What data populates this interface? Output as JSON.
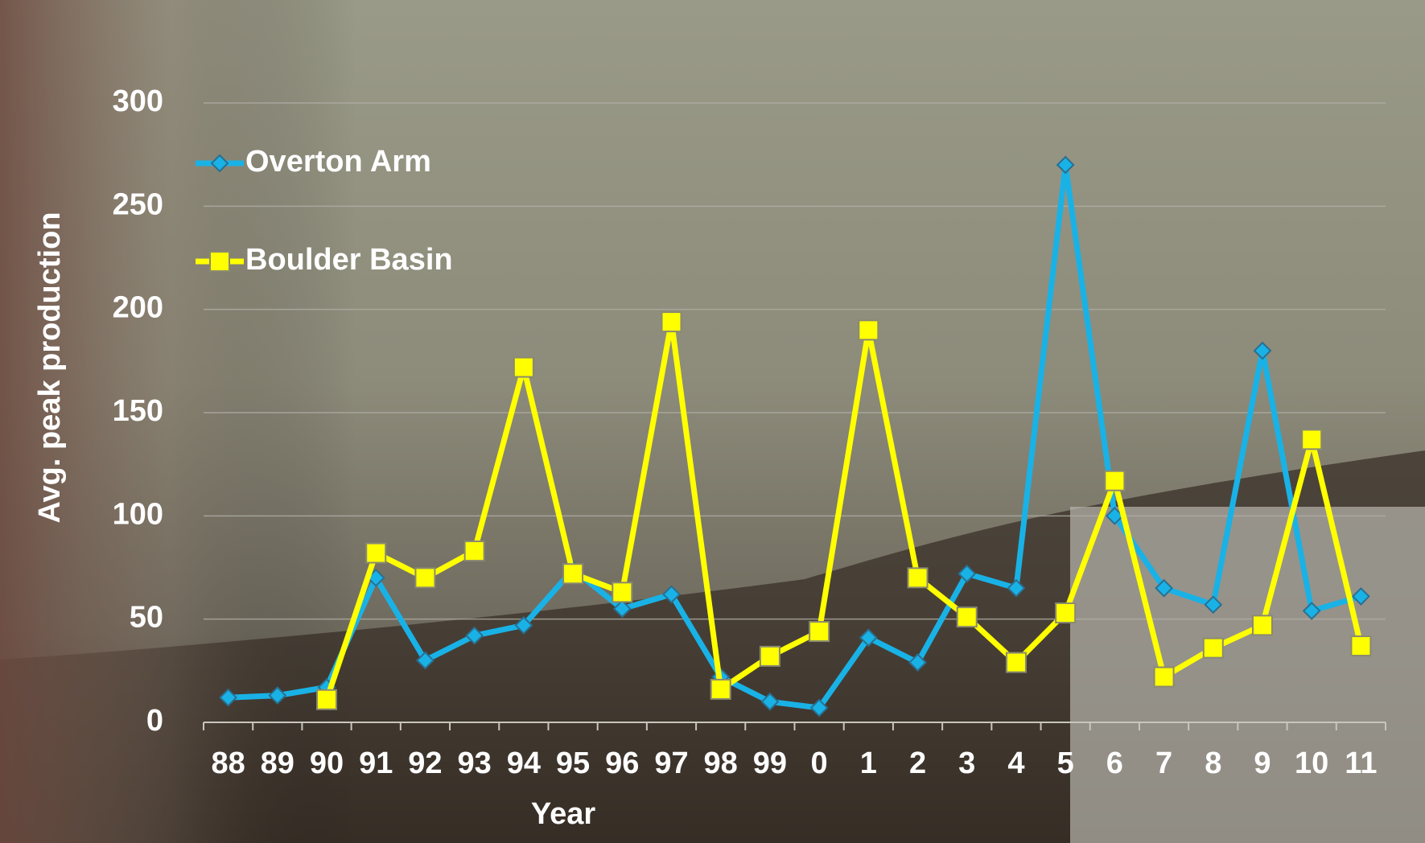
{
  "chart_data": {
    "type": "line",
    "x_label": "Year",
    "y_label": "Avg. peak production",
    "categories": [
      "88",
      "89",
      "90",
      "91",
      "92",
      "93",
      "94",
      "95",
      "96",
      "97",
      "98",
      "99",
      "0",
      "1",
      "2",
      "3",
      "4",
      "5",
      "6",
      "7",
      "8",
      "9",
      "10",
      "11"
    ],
    "series": [
      {
        "name": "Overton Arm",
        "color": "#19b2e6",
        "marker": "diamond",
        "values": [
          12,
          13,
          17,
          70,
          30,
          42,
          47,
          74,
          55,
          62,
          22,
          10,
          7,
          41,
          29,
          72,
          65,
          270,
          100,
          65,
          57,
          180,
          54,
          61
        ]
      },
      {
        "name": "Boulder Basin",
        "color": "#ffff00",
        "marker": "square",
        "values": [
          null,
          null,
          11,
          82,
          70,
          83,
          172,
          72,
          63,
          194,
          16,
          32,
          44,
          190,
          70,
          51,
          29,
          53,
          117,
          22,
          36,
          47,
          137,
          37
        ]
      }
    ],
    "ylim": [
      0,
      300
    ],
    "yticks": [
      0,
      50,
      100,
      150,
      200,
      250,
      300
    ],
    "grid": true,
    "legend": "upper left"
  }
}
